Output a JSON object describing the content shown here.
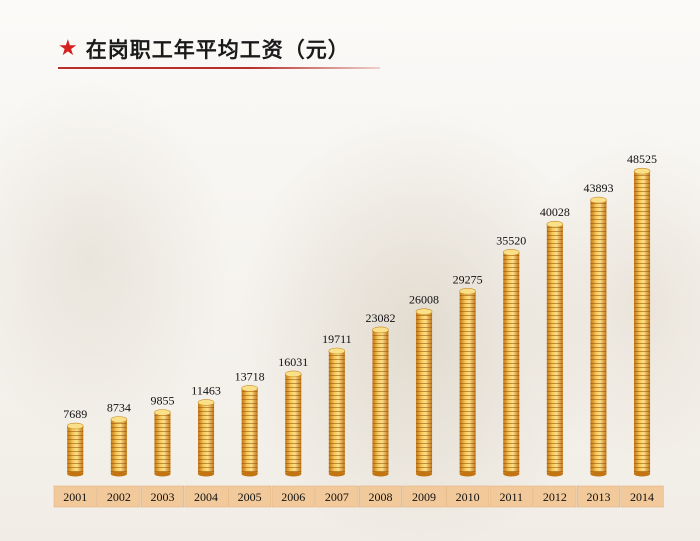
{
  "header": {
    "title": "在岗职工年平均工资（元）"
  },
  "colors": {
    "star": "#d4201e",
    "coin_light": "#f9d36a",
    "coin_dark": "#c87a12",
    "year_bar": "#f2c99a"
  },
  "chart_data": {
    "type": "bar",
    "title": "在岗职工年平均工资（元）",
    "categories": [
      "2001",
      "2002",
      "2003",
      "2004",
      "2005",
      "2006",
      "2007",
      "2008",
      "2009",
      "2010",
      "2011",
      "2012",
      "2013",
      "2014"
    ],
    "values": [
      7689,
      8734,
      9855,
      11463,
      13718,
      16031,
      19711,
      23082,
      26008,
      29275,
      35520,
      40028,
      43893,
      48525
    ],
    "data_labels": [
      "7689",
      "8734",
      "9855",
      "11463",
      "13718",
      "16031",
      "19711",
      "23082",
      "26008",
      "29275",
      "35520",
      "40028",
      "43893",
      "48525"
    ],
    "xlabel": "",
    "ylabel": "",
    "ylim": [
      0,
      50000
    ],
    "grid": false,
    "legend": "none"
  }
}
